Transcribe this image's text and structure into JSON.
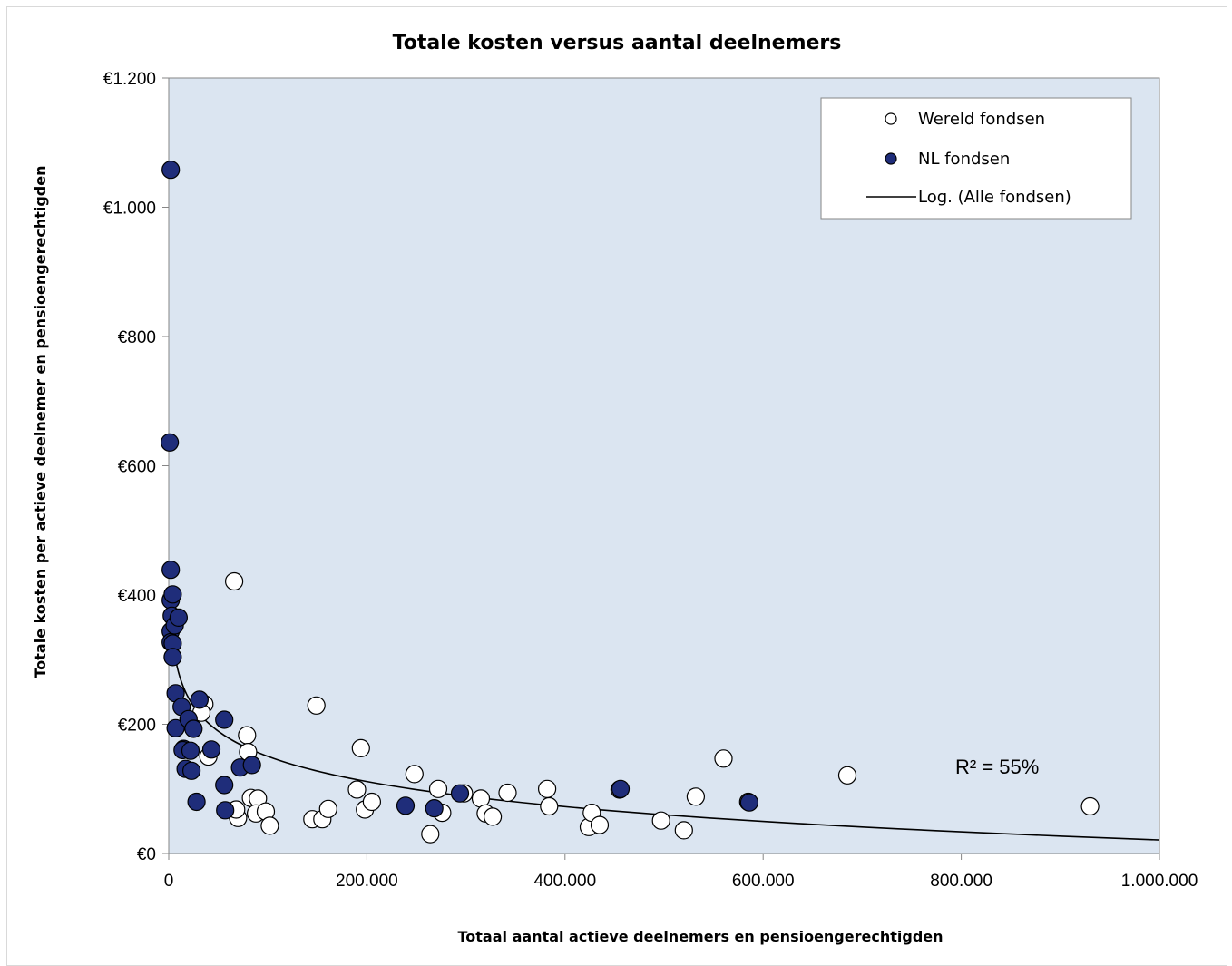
{
  "chart_data": {
    "type": "scatter",
    "title": "Totale kosten versus aantal deelnemers",
    "xlabel": "Totaal aantal actieve deelnemers en pensioengerechtigden",
    "ylabel": "Totale kosten per actieve deelnemer en pensioengerechtigden",
    "xlim": [
      0,
      1000000
    ],
    "ylim": [
      0,
      1200
    ],
    "x_ticks": [
      0,
      200000,
      400000,
      600000,
      800000,
      1000000
    ],
    "x_tick_labels": [
      "0",
      "200.000",
      "400.000",
      "600.000",
      "800.000",
      "1.000.000"
    ],
    "y_ticks": [
      0,
      200,
      400,
      600,
      800,
      1000,
      1200
    ],
    "y_tick_labels": [
      "€0",
      "€200",
      "€400",
      "€600",
      "€800",
      "€1.000",
      "€1.200"
    ],
    "plot_background": "#dbe5f1",
    "legend_position": "top-right",
    "annotation": "R² = 55%",
    "series": [
      {
        "name": "Wereld fondsen",
        "marker": "circle-open",
        "color": "#ffffff",
        "points": [
          [
            66000,
            421
          ],
          [
            149000,
            229
          ],
          [
            194000,
            163
          ],
          [
            79000,
            183
          ],
          [
            80000,
            157
          ],
          [
            36000,
            231
          ],
          [
            33000,
            218
          ],
          [
            40000,
            150
          ],
          [
            83000,
            86
          ],
          [
            90000,
            85
          ],
          [
            88000,
            62
          ],
          [
            98000,
            65
          ],
          [
            102000,
            43
          ],
          [
            70000,
            55
          ],
          [
            68000,
            68
          ],
          [
            145000,
            53
          ],
          [
            155000,
            53
          ],
          [
            161000,
            69
          ],
          [
            190000,
            99
          ],
          [
            198000,
            68
          ],
          [
            205000,
            80
          ],
          [
            248000,
            123
          ],
          [
            264000,
            30
          ],
          [
            272000,
            100
          ],
          [
            276000,
            63
          ],
          [
            298000,
            93
          ],
          [
            315000,
            85
          ],
          [
            320000,
            62
          ],
          [
            327000,
            57
          ],
          [
            342000,
            94
          ],
          [
            382000,
            100
          ],
          [
            384000,
            73
          ],
          [
            424000,
            41
          ],
          [
            427000,
            63
          ],
          [
            435000,
            44
          ],
          [
            455000,
            99
          ],
          [
            497000,
            51
          ],
          [
            520000,
            36
          ],
          [
            532000,
            88
          ],
          [
            560000,
            147
          ],
          [
            685000,
            121
          ],
          [
            930000,
            73
          ],
          [
            585000,
            80
          ]
        ]
      },
      {
        "name": "NL fondsen",
        "marker": "circle-filled",
        "color": "#1f2d7a",
        "points": [
          [
            2000,
            1058
          ],
          [
            1000,
            636
          ],
          [
            2000,
            439
          ],
          [
            2000,
            392
          ],
          [
            4000,
            401
          ],
          [
            3000,
            368
          ],
          [
            2000,
            344
          ],
          [
            2000,
            327
          ],
          [
            4000,
            325
          ],
          [
            4000,
            304
          ],
          [
            6000,
            353
          ],
          [
            10000,
            365
          ],
          [
            7000,
            248
          ],
          [
            7000,
            194
          ],
          [
            13000,
            227
          ],
          [
            15000,
            162
          ],
          [
            14000,
            160
          ],
          [
            17000,
            131
          ],
          [
            20000,
            208
          ],
          [
            22000,
            159
          ],
          [
            23000,
            128
          ],
          [
            25000,
            193
          ],
          [
            28000,
            80
          ],
          [
            31000,
            238
          ],
          [
            43000,
            161
          ],
          [
            56000,
            207
          ],
          [
            56000,
            106
          ],
          [
            57000,
            67
          ],
          [
            72000,
            133
          ],
          [
            84000,
            137
          ],
          [
            239000,
            74
          ],
          [
            268000,
            70
          ],
          [
            294000,
            93
          ],
          [
            456000,
            100
          ],
          [
            586000,
            79
          ]
        ]
      },
      {
        "name": "Log. (Alle fondsen)",
        "marker": "line",
        "color": "#000000",
        "fit": "logarithmic",
        "x_start": 1000,
        "x_end": 1000000,
        "y_start": 409,
        "y_end": 21
      }
    ]
  }
}
